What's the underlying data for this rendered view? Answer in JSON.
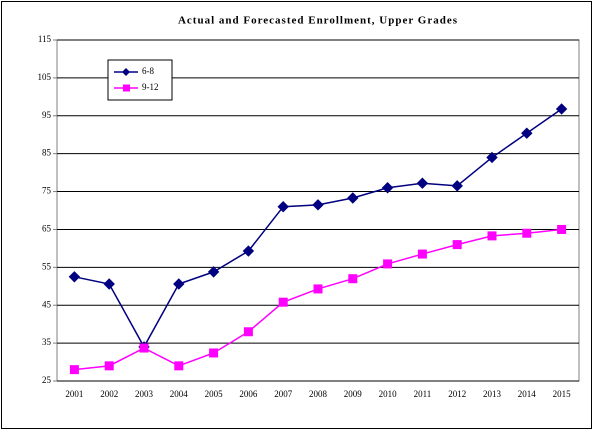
{
  "chart_data": {
    "type": "line",
    "title": "Actual and Forecasted Enrollment, Upper Grades",
    "categories": [
      "2001",
      "2002",
      "2003",
      "2004",
      "2005",
      "2006",
      "2007",
      "2008",
      "2009",
      "2010",
      "2011",
      "2012",
      "2013",
      "2014",
      "2015"
    ],
    "series": [
      {
        "name": "6-8",
        "color": "#000080",
        "marker": "diamond",
        "values": [
          52.5,
          50.6,
          34,
          50.6,
          53.8,
          59.3,
          71,
          71.5,
          73.3,
          76,
          77.2,
          76.5,
          84,
          90.4,
          96.8
        ]
      },
      {
        "name": "9-12",
        "color": "#ff00ff",
        "marker": "square",
        "values": [
          28,
          29,
          33.7,
          29,
          32.4,
          38,
          45.8,
          49.3,
          52,
          55.9,
          58.5,
          61,
          63.3,
          64,
          65
        ]
      }
    ],
    "ylim": [
      25,
      115
    ],
    "yticks": [
      25,
      35,
      45,
      55,
      65,
      75,
      85,
      95,
      105,
      115
    ],
    "grid": true,
    "legend": "top-left"
  }
}
